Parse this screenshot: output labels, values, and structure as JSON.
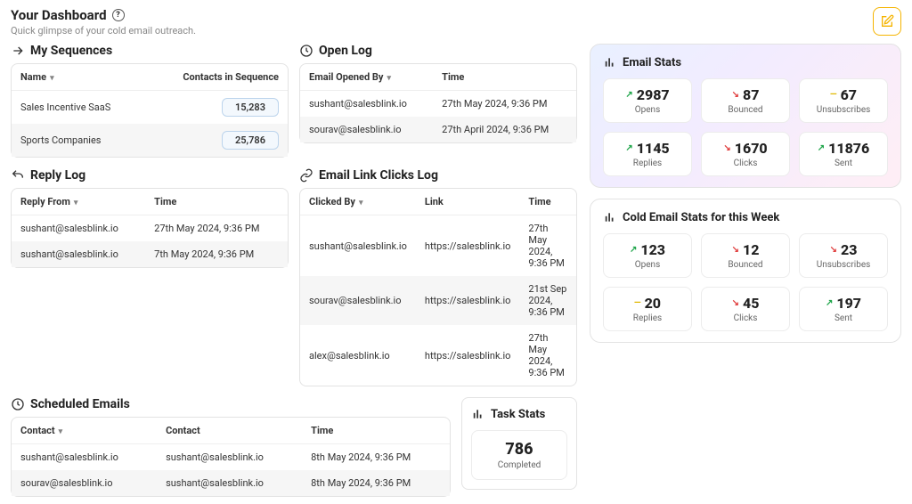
{
  "header": {
    "title": "Your Dashboard",
    "subtitle": "Quick glimpse of your cold email outreach."
  },
  "sequences": {
    "title": "My Sequences",
    "cols": {
      "name": "Name",
      "contacts": "Contacts in Sequence"
    },
    "rows": [
      {
        "name": "Sales Incentive SaaS",
        "count": "15,283"
      },
      {
        "name": "Sports Companies",
        "count": "25,786"
      }
    ]
  },
  "openlog": {
    "title": "Open Log",
    "cols": {
      "by": "Email Opened By",
      "time": "Time"
    },
    "rows": [
      {
        "by": "sushant@salesblink.io",
        "time": "27th May 2024, 9:36 PM"
      },
      {
        "by": "sourav@salesblink.io",
        "time": "27th April 2024, 9:36 PM"
      }
    ]
  },
  "replylog": {
    "title": "Reply Log",
    "cols": {
      "from": "Reply From",
      "time": "Time"
    },
    "rows": [
      {
        "from": "sushant@salesblink.io",
        "time": "27th May 2024, 9:36 PM"
      },
      {
        "from": "sushant@salesblink.io",
        "time": "7th May 2024, 9:36 PM"
      }
    ]
  },
  "clickslog": {
    "title": "Email Link Clicks Log",
    "cols": {
      "by": "Clicked By",
      "link": "Link",
      "time": "Time"
    },
    "rows": [
      {
        "by": "sushant@salesblink.io",
        "link": "https://salesblink.io",
        "time": "27th May 2024, 9:36 PM"
      },
      {
        "by": "sourav@salesblink.io",
        "link": "https://salesblink.io",
        "time": "21st Sep 2024, 9:36 PM"
      },
      {
        "by": "alex@salesblink.io",
        "link": "https://salesblink.io",
        "time": "27th May 2024, 9:36 PM"
      }
    ]
  },
  "scheduled": {
    "title": "Scheduled Emails",
    "cols": {
      "c1": "Contact",
      "c2": "Contact",
      "time": "Time"
    },
    "rows": [
      {
        "c1": "sushant@salesblink.io",
        "c2": "sushant@salesblink.io",
        "time": "8th May 2024, 9:36 PM"
      },
      {
        "c1": "sourav@salesblink.io",
        "c2": "sushant@salesblink.io",
        "time": "8th May 2024, 9:36 PM"
      }
    ]
  },
  "taskstats": {
    "title": "Task Stats",
    "value": "786",
    "label": "Completed"
  },
  "emailstats": {
    "title": "Email Stats",
    "items": [
      {
        "value": "2987",
        "label": "Opens",
        "trend": "up"
      },
      {
        "value": "87",
        "label": "Bounced",
        "trend": "down"
      },
      {
        "value": "67",
        "label": "Unsubscribes",
        "trend": "flat"
      },
      {
        "value": "1145",
        "label": "Replies",
        "trend": "up"
      },
      {
        "value": "1670",
        "label": "Clicks",
        "trend": "down"
      },
      {
        "value": "11876",
        "label": "Sent",
        "trend": "up"
      }
    ]
  },
  "weekstats": {
    "title": "Cold Email Stats for this Week",
    "items": [
      {
        "value": "123",
        "label": "Opens",
        "trend": "up"
      },
      {
        "value": "12",
        "label": "Bounced",
        "trend": "down"
      },
      {
        "value": "23",
        "label": "Unsubscribes",
        "trend": "down"
      },
      {
        "value": "20",
        "label": "Replies",
        "trend": "flat"
      },
      {
        "value": "45",
        "label": "Clicks",
        "trend": "down"
      },
      {
        "value": "197",
        "label": "Sent",
        "trend": "up"
      }
    ]
  }
}
